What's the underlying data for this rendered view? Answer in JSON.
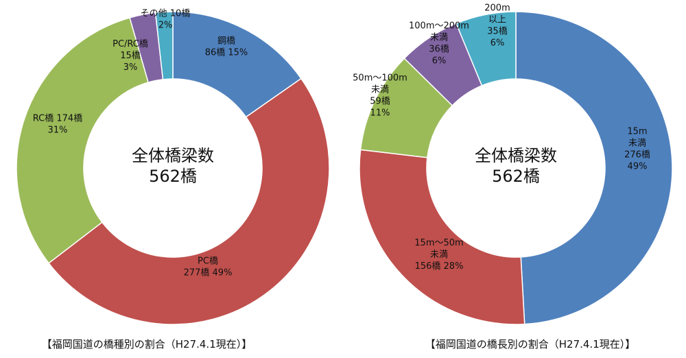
{
  "chart_data": [
    {
      "type": "pie",
      "style": "donut",
      "title": "【福岡国道の橋種別の割合（H27.4.1現在）】",
      "center_text": [
        "全体橋梁数",
        "562橋"
      ],
      "start": "12 o'clock, clockwise",
      "slices": [
        {
          "name": "鋼橋",
          "count": 86,
          "percent": 15,
          "color": "#4F81BD",
          "label": [
            "鋼橋",
            "86橋 15%"
          ]
        },
        {
          "name": "PC橋",
          "count": 277,
          "percent": 49,
          "color": "#C0504D",
          "label": [
            "PC橋",
            "277橋 49%"
          ]
        },
        {
          "name": "RC橋",
          "count": 174,
          "percent": 31,
          "color": "#9BBB59",
          "label": [
            "RC橋 174橋",
            "31%"
          ]
        },
        {
          "name": "PC/RC橋",
          "count": 15,
          "percent": 3,
          "color": "#8064A2",
          "label": [
            "PC/RC橋",
            "15橋",
            "3%"
          ]
        },
        {
          "name": "その他",
          "count": 10,
          "percent": 2,
          "color": "#4BACC6",
          "label": [
            "その他 10橋",
            "2%"
          ]
        }
      ]
    },
    {
      "type": "pie",
      "style": "donut",
      "title": "【福岡国道の橋長別の割合（H27.4.1現在）】",
      "center_text": [
        "全体橋梁数",
        "562橋"
      ],
      "start": "12 o'clock, clockwise",
      "slices": [
        {
          "name": "15m未満",
          "count": 276,
          "percent": 49,
          "color": "#4F81BD",
          "label": [
            "15m",
            "未満",
            "276橋",
            "49%"
          ]
        },
        {
          "name": "15m～50m未満",
          "count": 156,
          "percent": 28,
          "color": "#C0504D",
          "label": [
            "15m～50m",
            "未満",
            "156橋 28%"
          ]
        },
        {
          "name": "50m～100m未満",
          "count": 59,
          "percent": 11,
          "color": "#9BBB59",
          "label": [
            "50m～100m",
            "未満",
            "59橋",
            "11%"
          ]
        },
        {
          "name": "100m～200m未満",
          "count": 36,
          "percent": 6,
          "color": "#8064A2",
          "label": [
            "100m～200m",
            "未満",
            "36橋",
            "6%"
          ]
        },
        {
          "name": "200m以上",
          "count": 35,
          "percent": 6,
          "color": "#4BACC6",
          "label": [
            "200m",
            "以上",
            "35橋",
            "6%"
          ]
        }
      ]
    }
  ]
}
